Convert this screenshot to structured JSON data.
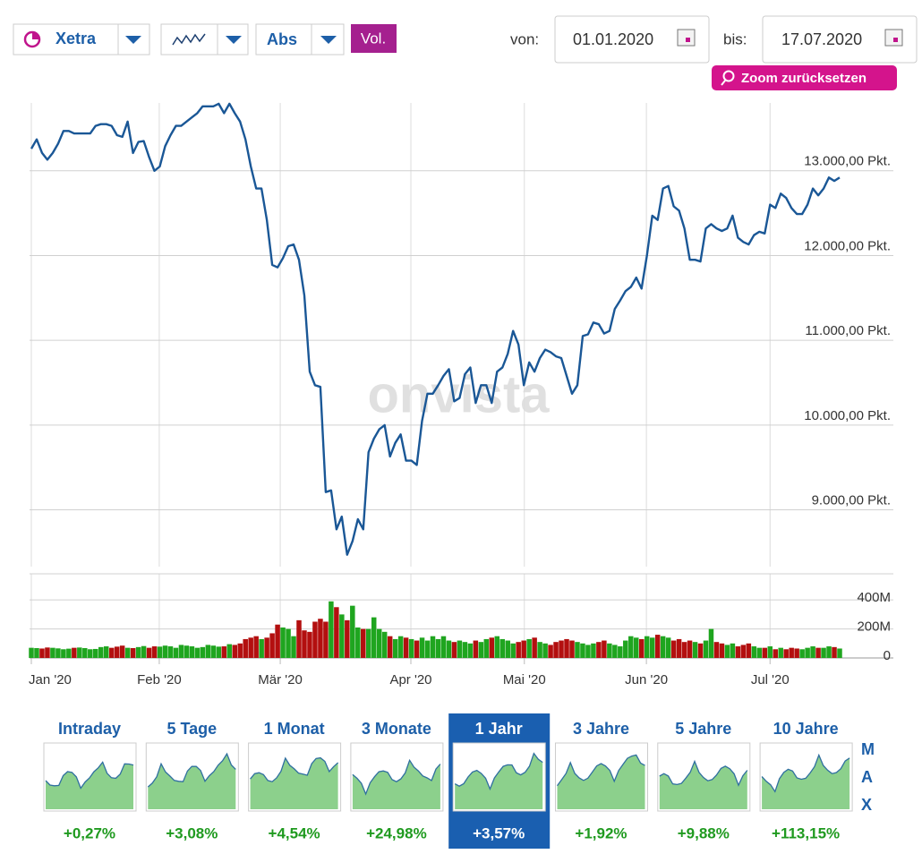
{
  "toolbar": {
    "exchange": "Xetra",
    "mode": "Abs",
    "volume": "Vol.",
    "from_label": "von:",
    "from_date": "01.01.2020",
    "to_label": "bis:",
    "to_date": "17.07.2020",
    "reset_zoom": "Zoom zurücksetzen"
  },
  "watermark": "onvista",
  "chart_data": [
    {
      "type": "line",
      "color": "#1a5796",
      "grid": true,
      "xlim": [
        0,
        151
      ],
      "ylim": [
        8330,
        13800
      ],
      "yticks": [
        {
          "value": 9000,
          "label": "9.000,00 Pkt."
        },
        {
          "value": 10000,
          "label": "10.000,00 Pkt."
        },
        {
          "value": 11000,
          "label": "11.000,00 Pkt."
        },
        {
          "value": 12000,
          "label": "12.000,00 Pkt."
        },
        {
          "value": 13000,
          "label": "13.000,00 Pkt."
        }
      ],
      "xticks": [
        {
          "value": 0,
          "label": "Jan '20"
        },
        {
          "value": 23.9,
          "label": "Feb '20"
        },
        {
          "value": 46.5,
          "label": "Mär '20"
        },
        {
          "value": 70.9,
          "label": "Apr '20"
        },
        {
          "value": 92.1,
          "label": "Mai '20"
        },
        {
          "value": 114.9,
          "label": "Jun '20"
        },
        {
          "value": 138,
          "label": "Jul '20"
        }
      ],
      "values": [
        13260,
        13370,
        13210,
        13130,
        13210,
        13320,
        13470,
        13470,
        13440,
        13440,
        13440,
        13440,
        13530,
        13550,
        13550,
        13530,
        13420,
        13400,
        13580,
        13210,
        13340,
        13350,
        13160,
        13000,
        13050,
        13290,
        13420,
        13530,
        13530,
        13580,
        13630,
        13680,
        13760,
        13760,
        13760,
        13790,
        13680,
        13790,
        13680,
        13580,
        13370,
        13050,
        12790,
        12790,
        12420,
        11890,
        11860,
        11970,
        12110,
        12130,
        11950,
        11530,
        10630,
        10470,
        10450,
        9210,
        9230,
        8770,
        8920,
        8470,
        8630,
        8890,
        8770,
        9680,
        9840,
        9950,
        10000,
        9630,
        9790,
        9890,
        9580,
        9580,
        9530,
        10050,
        10370,
        10370,
        10470,
        10580,
        10660,
        10280,
        10320,
        10600,
        10680,
        10260,
        10470,
        10470,
        10260,
        10630,
        10680,
        10840,
        11110,
        10950,
        10470,
        10740,
        10630,
        10790,
        10890,
        10860,
        10810,
        10790,
        10580,
        10370,
        10470,
        11050,
        11070,
        11210,
        11190,
        11080,
        11110,
        11370,
        11470,
        11580,
        11630,
        11740,
        11610,
        12000,
        12470,
        12420,
        12790,
        12820,
        12580,
        12530,
        12320,
        11950,
        11950,
        11930,
        12320,
        12370,
        12320,
        12290,
        12320,
        12470,
        12210,
        12160,
        12130,
        12240,
        12280,
        12260,
        12600,
        12560,
        12730,
        12680,
        12560,
        12490,
        12490,
        12600,
        12790,
        12710,
        12790,
        12920,
        12880,
        12920
      ]
    },
    {
      "type": "bar",
      "up_color": "#1fa51f",
      "down_color": "#b30f0f",
      "grid": true,
      "xlim": [
        0,
        151
      ],
      "ylim": [
        0,
        580
      ],
      "yticks": [
        0,
        {
          "value": 200,
          "label": "200M"
        },
        {
          "value": 400,
          "label": "400M"
        }
      ],
      "values": [
        70,
        68,
        65,
        72,
        70,
        66,
        60,
        64,
        70,
        72,
        68,
        60,
        62,
        75,
        80,
        70,
        78,
        85,
        70,
        68,
        75,
        82,
        70,
        80,
        78,
        85,
        80,
        70,
        90,
        85,
        80,
        70,
        75,
        90,
        85,
        78,
        80,
        95,
        90,
        100,
        130,
        140,
        150,
        130,
        140,
        170,
        230,
        210,
        200,
        150,
        260,
        190,
        180,
        250,
        270,
        250,
        390,
        350,
        300,
        260,
        360,
        210,
        200,
        200,
        280,
        200,
        180,
        150,
        130,
        150,
        140,
        130,
        120,
        140,
        120,
        150,
        130,
        150,
        120,
        110,
        120,
        110,
        100,
        120,
        110,
        130,
        140,
        150,
        130,
        120,
        100,
        110,
        120,
        130,
        140,
        110,
        100,
        90,
        110,
        120,
        130,
        120,
        110,
        100,
        90,
        100,
        110,
        120,
        100,
        90,
        80,
        120,
        150,
        140,
        130,
        150,
        140,
        160,
        150,
        140,
        120,
        130,
        110,
        120,
        110,
        100,
        120,
        200,
        110,
        100,
        90,
        100,
        80,
        90,
        100,
        80,
        70,
        70,
        80,
        60,
        70,
        60,
        70,
        65,
        60,
        70,
        80,
        70,
        70,
        80,
        75,
        65
      ]
    }
  ],
  "periods": [
    {
      "label": "Intraday",
      "change": "+0,27%"
    },
    {
      "label": "5 Tage",
      "change": "+3,08%"
    },
    {
      "label": "1 Monat",
      "change": "+4,54%"
    },
    {
      "label": "3 Monate",
      "change": "+24,98%"
    },
    {
      "label": "1 Jahr",
      "change": "+3,57%"
    },
    {
      "label": "3 Jahre",
      "change": "+1,92%"
    },
    {
      "label": "5 Jahre",
      "change": "+9,88%"
    },
    {
      "label": "10 Jahre",
      "change": "+113,15%"
    }
  ],
  "selected_period": 4,
  "max_label": "MAX"
}
